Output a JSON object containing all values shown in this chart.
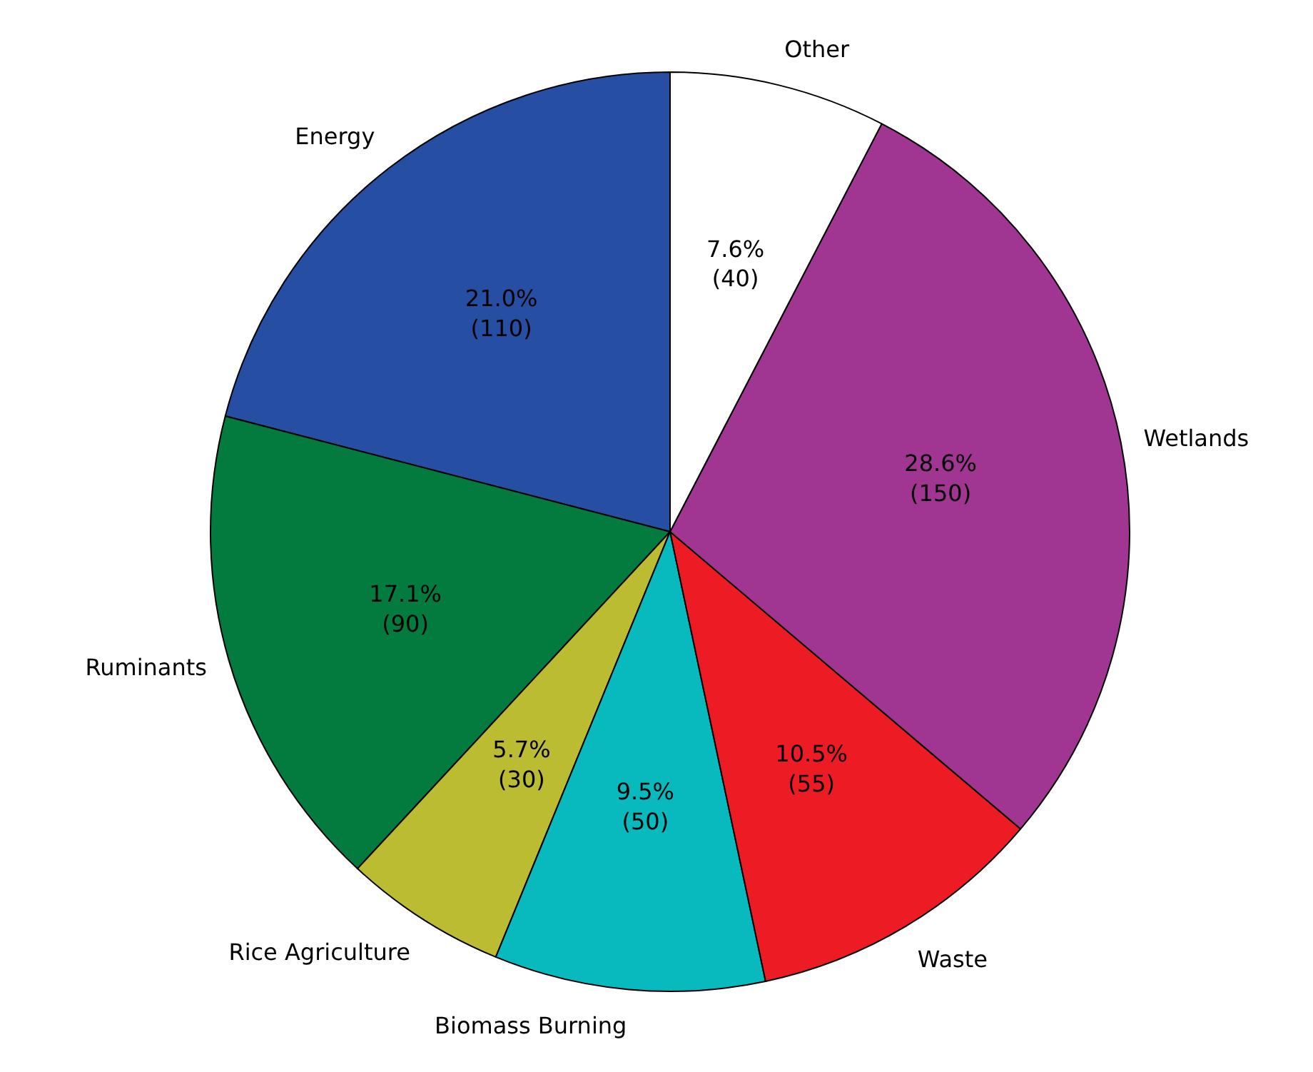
{
  "chart_data": {
    "type": "pie",
    "categories": [
      "Energy",
      "Ruminants",
      "Rice Agriculture",
      "Biomass Burning",
      "Waste",
      "Wetlands",
      "Other"
    ],
    "values": [
      110,
      90,
      30,
      50,
      55,
      150,
      40
    ],
    "colors": [
      "#264fa3",
      "#037a3e",
      "#bcbc33",
      "#08b9be",
      "#ed1c24",
      "#a03592",
      "#ffffff"
    ],
    "value_labels": [
      "21.0%\n(110)",
      "17.1%\n(90)",
      "5.7%\n(30)",
      "9.5%\n(50)",
      "10.5%\n(55)",
      "28.6%\n(150)",
      "7.6%\n(40)"
    ]
  }
}
